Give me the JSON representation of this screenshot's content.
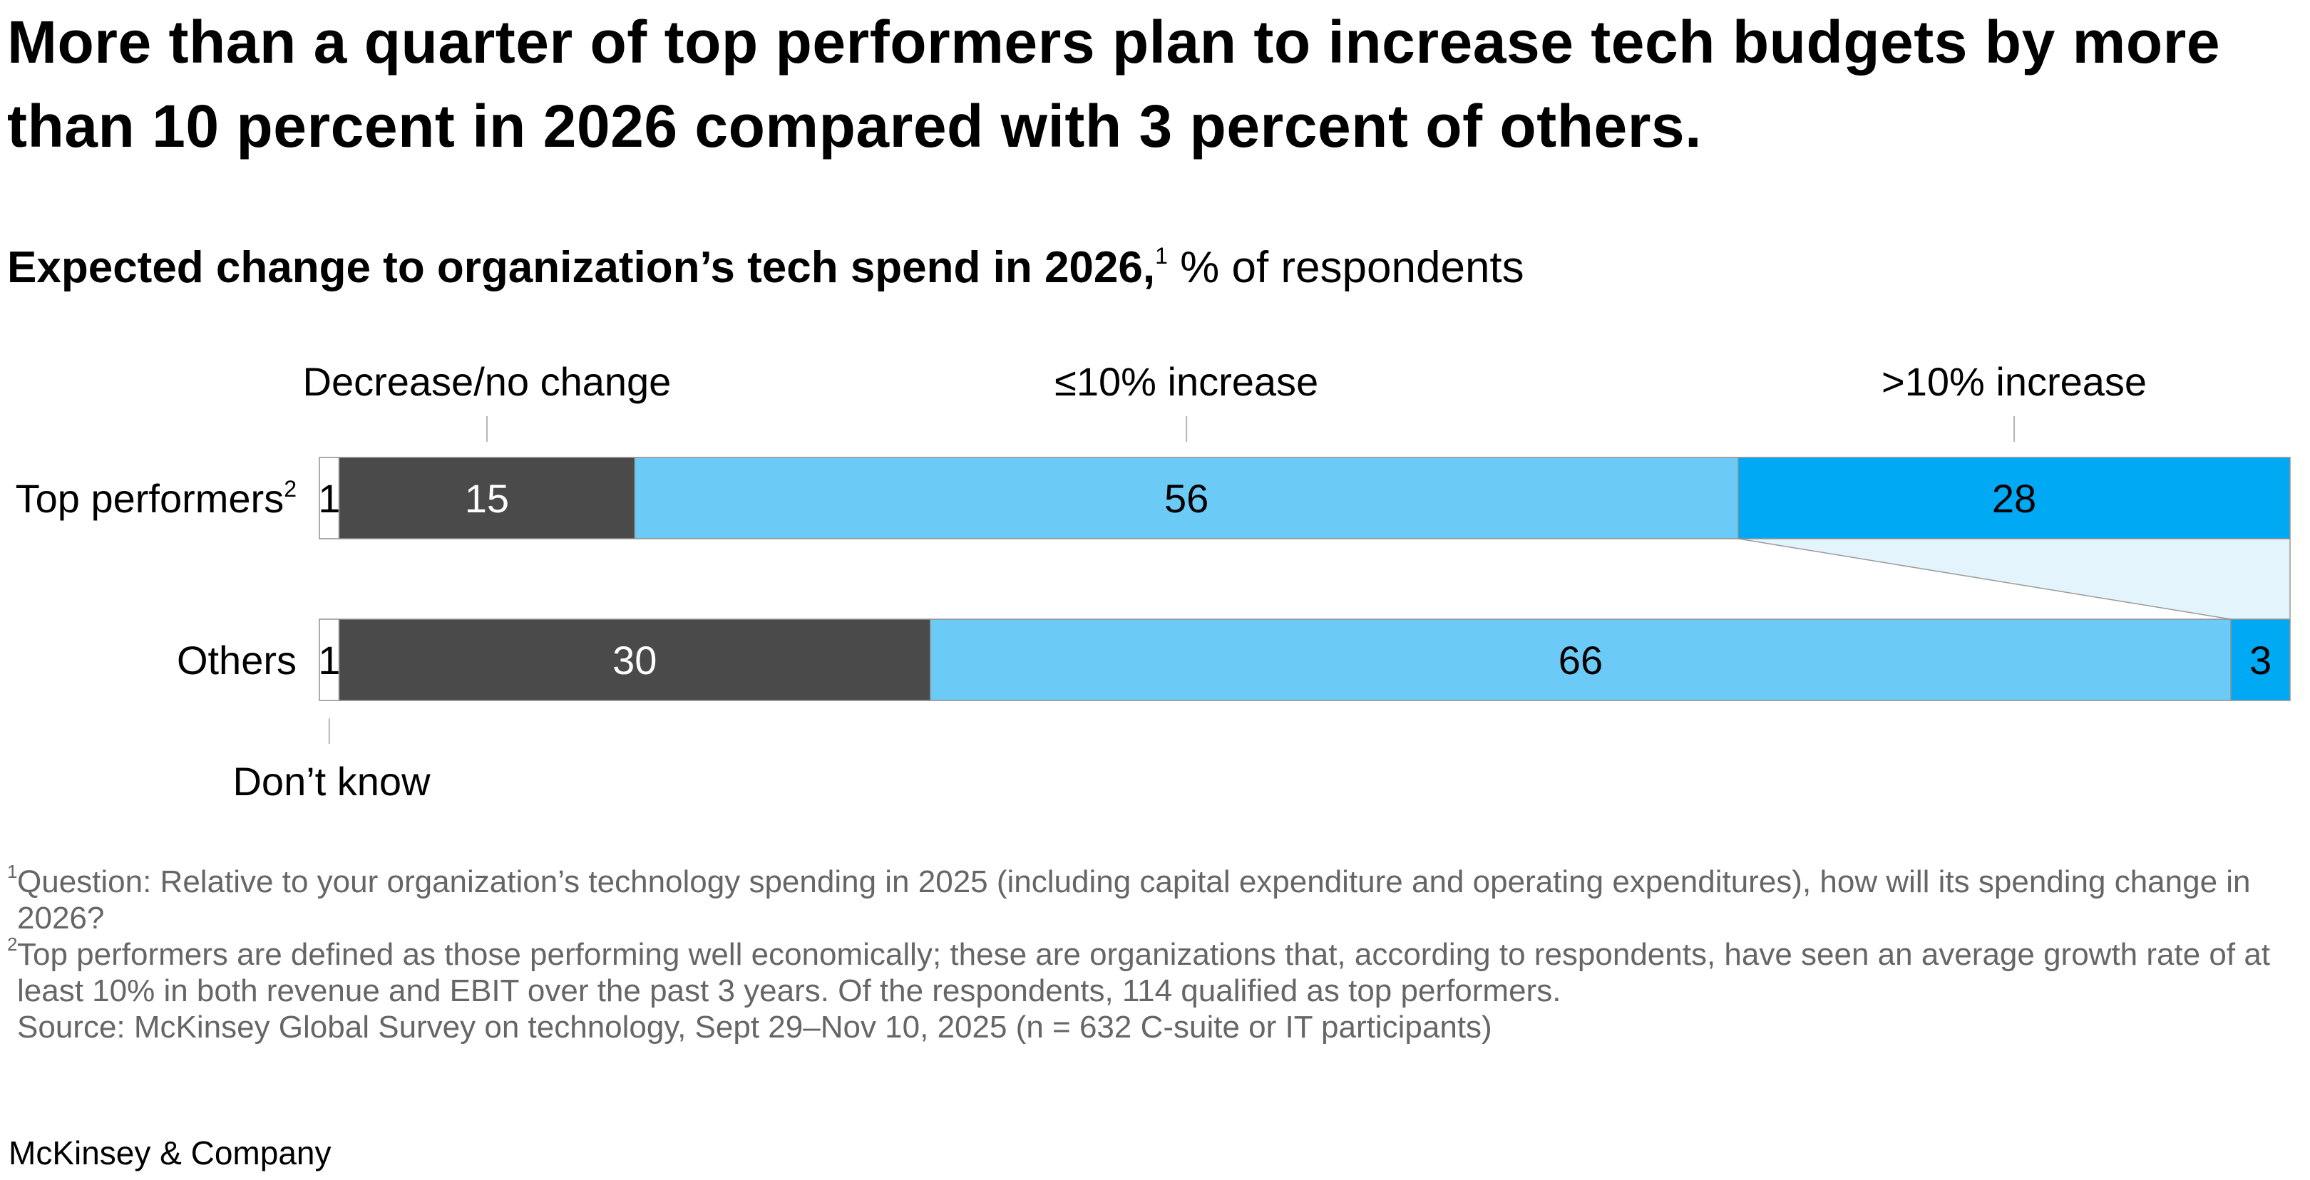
{
  "headline": "More than a quarter of top performers plan to increase tech budgets by more than 10 percent in 2026 compared with 3 percent of others.",
  "subtitle": {
    "bold": "Expected change to organization’s tech spend in 2026,",
    "footnote_marker": "1",
    "unit": " % of respondents"
  },
  "chart_data": {
    "type": "bar",
    "orientation": "horizontal",
    "stacked": true,
    "percent_total": 100,
    "categories": [
      "Top performers",
      "Others"
    ],
    "category_footnotes": [
      "2",
      ""
    ],
    "series": [
      {
        "name": "Don’t know",
        "values": [
          1,
          1
        ],
        "color": "#ffffff",
        "label_color": "#000000"
      },
      {
        "name": "Decrease/no change",
        "values": [
          15,
          30
        ],
        "color": "#4a4a4a",
        "label_color": "#ffffff"
      },
      {
        "name": "≤10% increase",
        "values": [
          56,
          66
        ],
        "color": "#6ccaf6",
        "label_color": "#000000"
      },
      {
        "name": ">10% increase",
        "values": [
          28,
          3
        ],
        "color": "#00a9f4",
        "label_color": "#000000"
      }
    ],
    "legend_placement": "top and bottom, inline callouts",
    "highlight": {
      "series": ">10% increase",
      "color": "#e3f4fc"
    },
    "grid": false
  },
  "footnotes": [
    {
      "marker": "1",
      "text": "Question: Relative to your organization’s technology spending in 2025 (including capital expenditure and operating expenditures), how will its spending change in 2026?"
    },
    {
      "marker": "2",
      "text": "Top performers are defined as those performing well economically; these are organizations that, according to respondents, have seen an average growth rate of at least 10% in both revenue and EBIT over the past 3 years. Of the respondents, 114 qualified as top performers."
    }
  ],
  "source": "Source: McKinsey Global Survey on technology, Sept 29–Nov 10, 2025 (n = 632 C-suite or IT participants)",
  "brand": "McKinsey & Company"
}
